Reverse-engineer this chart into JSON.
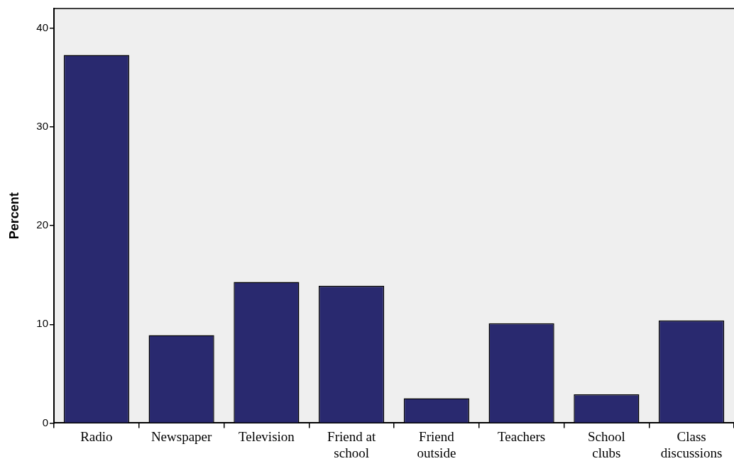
{
  "chart_data": {
    "type": "bar",
    "ylabel": "Percent",
    "categories": [
      "Radio",
      "Newspaper",
      "Television",
      "Friend at school",
      "Friend outside",
      "Teachers",
      "School clubs",
      "Class discussions"
    ],
    "values": [
      37.3,
      8.9,
      14.3,
      13.9,
      2.5,
      10.1,
      2.9,
      10.4
    ],
    "color": "#29296f",
    "ylim": [
      0,
      42
    ],
    "yticks": [
      0,
      10,
      20,
      30,
      40
    ],
    "grid": false
  }
}
